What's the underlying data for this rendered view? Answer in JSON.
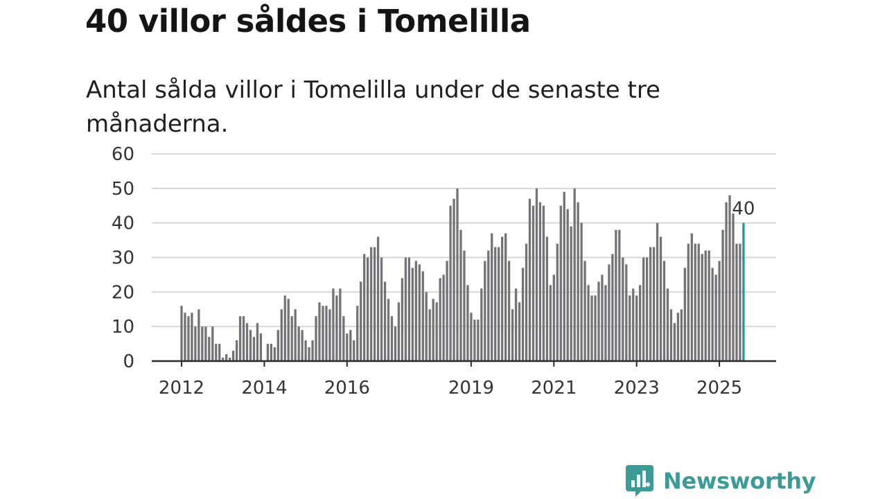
{
  "header": {
    "title": "40 villor såldes i Tomelilla",
    "subtitle": "Antal sålda villor i Tomelilla under de senaste tre månaderna."
  },
  "brand": {
    "name": "Newsworthy",
    "color": "#3c9b97",
    "icon": "newsworthy-logo-icon"
  },
  "colors": {
    "bar": "#737277",
    "highlight": "#1a9a8e",
    "grid": "#d7d7d7",
    "axis": "#2b2b2b"
  },
  "chart_data": {
    "type": "bar",
    "title": "40 villor såldes i Tomelilla",
    "xlabel": "",
    "ylabel": "",
    "ylim": [
      0,
      60
    ],
    "y_ticks": [
      0,
      10,
      20,
      30,
      40,
      50,
      60
    ],
    "grid": true,
    "start": "2012-01",
    "x_tick_labels": [
      {
        "label": "2012",
        "index": 0
      },
      {
        "label": "2014",
        "index": 24
      },
      {
        "label": "2016",
        "index": 48
      },
      {
        "label": "2019",
        "index": 84
      },
      {
        "label": "2021",
        "index": 108
      },
      {
        "label": "2023",
        "index": 132
      },
      {
        "label": "2025",
        "index": 156
      }
    ],
    "values": [
      16,
      14,
      13,
      14,
      10,
      15,
      10,
      10,
      7,
      10,
      5,
      5,
      1,
      2,
      1,
      3,
      6,
      13,
      13,
      11,
      9,
      7,
      11,
      8,
      0,
      5,
      5,
      4,
      9,
      15,
      19,
      18,
      13,
      15,
      10,
      9,
      6,
      4,
      6,
      13,
      17,
      16,
      16,
      15,
      21,
      19,
      21,
      13,
      8,
      9,
      6,
      16,
      23,
      31,
      30,
      33,
      33,
      36,
      30,
      23,
      18,
      13,
      10,
      17,
      24,
      30,
      30,
      27,
      29,
      28,
      26,
      20,
      15,
      18,
      17,
      24,
      25,
      29,
      45,
      47,
      50,
      38,
      32,
      22,
      14,
      12,
      12,
      21,
      29,
      32,
      37,
      33,
      33,
      36,
      37,
      29,
      15,
      21,
      17,
      27,
      34,
      47,
      45,
      50,
      46,
      45,
      36,
      22,
      25,
      34,
      45,
      49,
      44,
      39,
      50,
      46,
      40,
      29,
      22,
      19,
      19,
      23,
      25,
      22,
      28,
      31,
      38,
      38,
      30,
      28,
      19,
      21,
      19,
      22,
      30,
      30,
      33,
      33,
      40,
      36,
      29,
      21,
      15,
      11,
      14,
      15,
      27,
      34,
      37,
      34,
      34,
      31,
      32,
      32,
      27,
      25,
      29,
      38,
      46,
      48,
      43,
      34,
      34,
      40
    ],
    "highlight_index": 163,
    "highlight_label": "40"
  }
}
